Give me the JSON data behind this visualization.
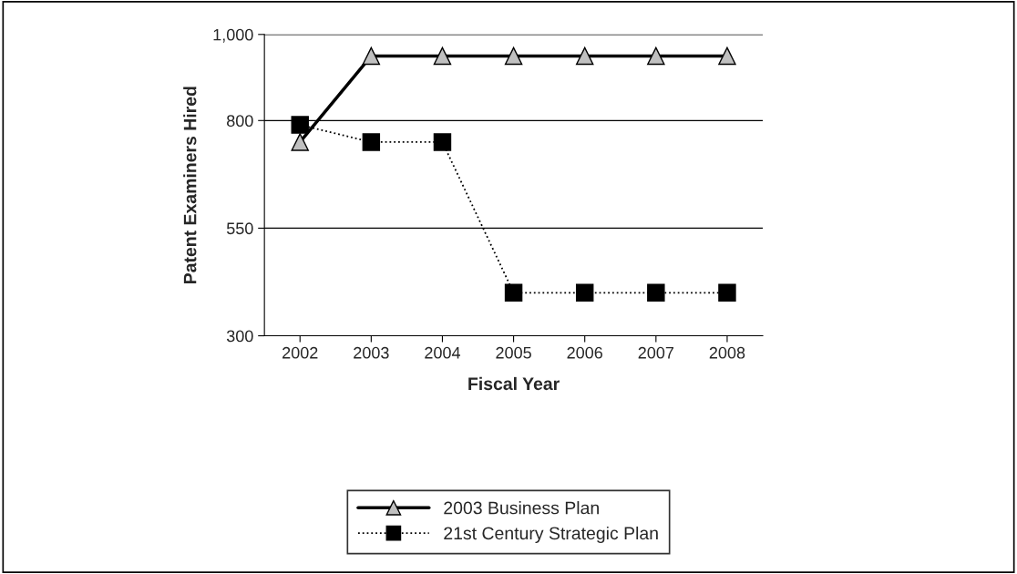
{
  "chart_data": {
    "type": "line",
    "xlabel": "Fiscal Year",
    "ylabel": "Patent Examiners Hired",
    "categories": [
      "2002",
      "2003",
      "2004",
      "2005",
      "2006",
      "2007",
      "2008"
    ],
    "series": [
      {
        "name": "2003 Business Plan",
        "color": "#000000",
        "values": [
          750,
          950,
          950,
          950,
          950,
          950,
          950
        ],
        "marker": "triangle",
        "line_style": "solid"
      },
      {
        "name": "21st Century Strategic Plan",
        "color": "#000000",
        "values": [
          790,
          750,
          750,
          400,
          400,
          400,
          400
        ],
        "marker": "square",
        "line_style": "dotted"
      }
    ],
    "ylim": [
      300,
      1000
    ],
    "yticks": [
      300,
      550,
      800,
      {
        "value": 1000,
        "label": "1,000"
      }
    ],
    "grid": "y",
    "legend": "bottom"
  }
}
